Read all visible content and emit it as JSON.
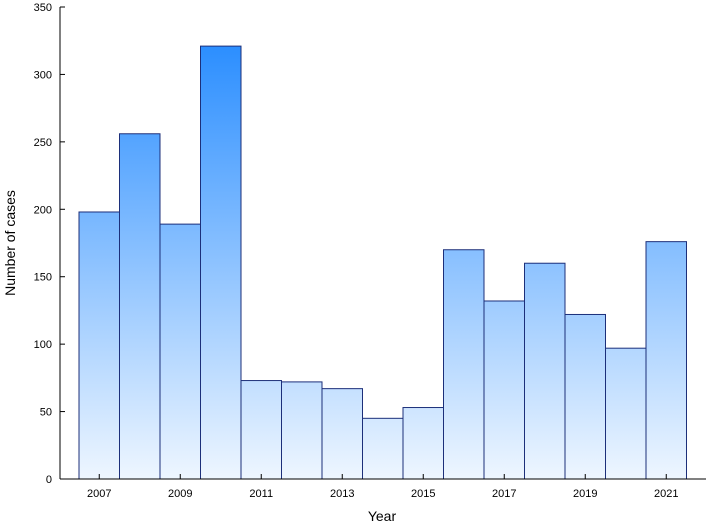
{
  "chart_data": {
    "type": "bar",
    "title": "",
    "xlabel": "Year",
    "ylabel": "Number of cases",
    "categories": [
      "2007",
      "2008",
      "2009",
      "2010",
      "2011",
      "2012",
      "2013",
      "2014",
      "2015",
      "2016",
      "2017",
      "2018",
      "2019",
      "2020",
      "2021"
    ],
    "values": [
      198,
      256,
      189,
      321,
      73,
      72,
      67,
      45,
      53,
      170,
      132,
      160,
      122,
      97,
      176
    ],
    "x_ticks": [
      "2007",
      "2009",
      "2011",
      "2013",
      "2015",
      "2017",
      "2019",
      "2021"
    ],
    "y_ticks": [
      0,
      50,
      100,
      150,
      200,
      250,
      300,
      350
    ],
    "ylim": [
      0,
      350
    ],
    "grid": false,
    "legend": "none",
    "bar_gradient": {
      "top": "#1a85ff",
      "bottom": "#eef6ff"
    },
    "bar_edge_color": "#1c2f7a"
  }
}
